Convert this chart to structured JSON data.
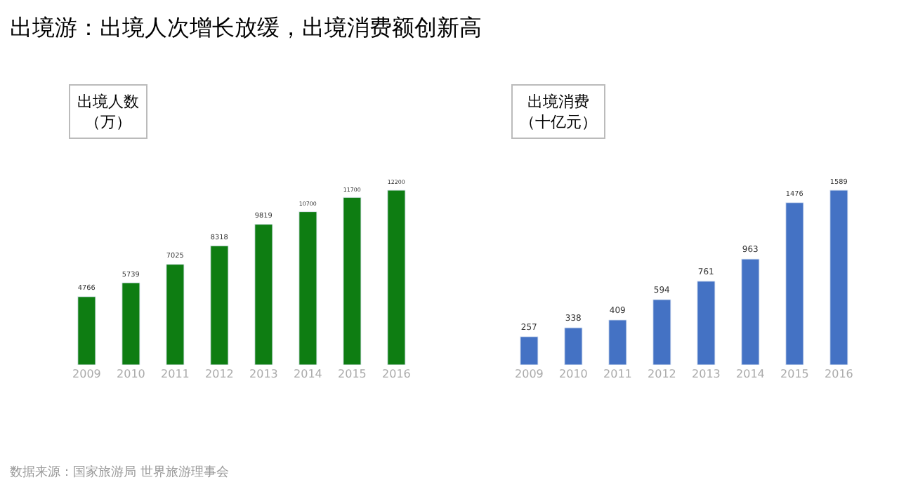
{
  "chart_data": [
    {
      "type": "bar",
      "title": "出境游：出境人次增长放缓，出境消费额创新高",
      "subtitle": "出境人数（万）",
      "categories": [
        "2009",
        "2010",
        "2011",
        "2012",
        "2013",
        "2014",
        "2015",
        "2016"
      ],
      "values": [
        4766,
        5739,
        7025,
        8318,
        9819,
        10700,
        11700,
        12200
      ],
      "color": "#0e7d12",
      "data_labels": true,
      "annotations": [
        "数据来源：国家旅游局 世界旅游理事会"
      ]
    },
    {
      "type": "bar",
      "subtitle": "出境消费（十亿元）",
      "categories": [
        "2009",
        "2010",
        "2011",
        "2012",
        "2013",
        "2014",
        "2015",
        "2016"
      ],
      "values": [
        257,
        338,
        409,
        594,
        761,
        963,
        1476,
        1589
      ],
      "color": "#4472c4",
      "data_labels": true
    }
  ]
}
